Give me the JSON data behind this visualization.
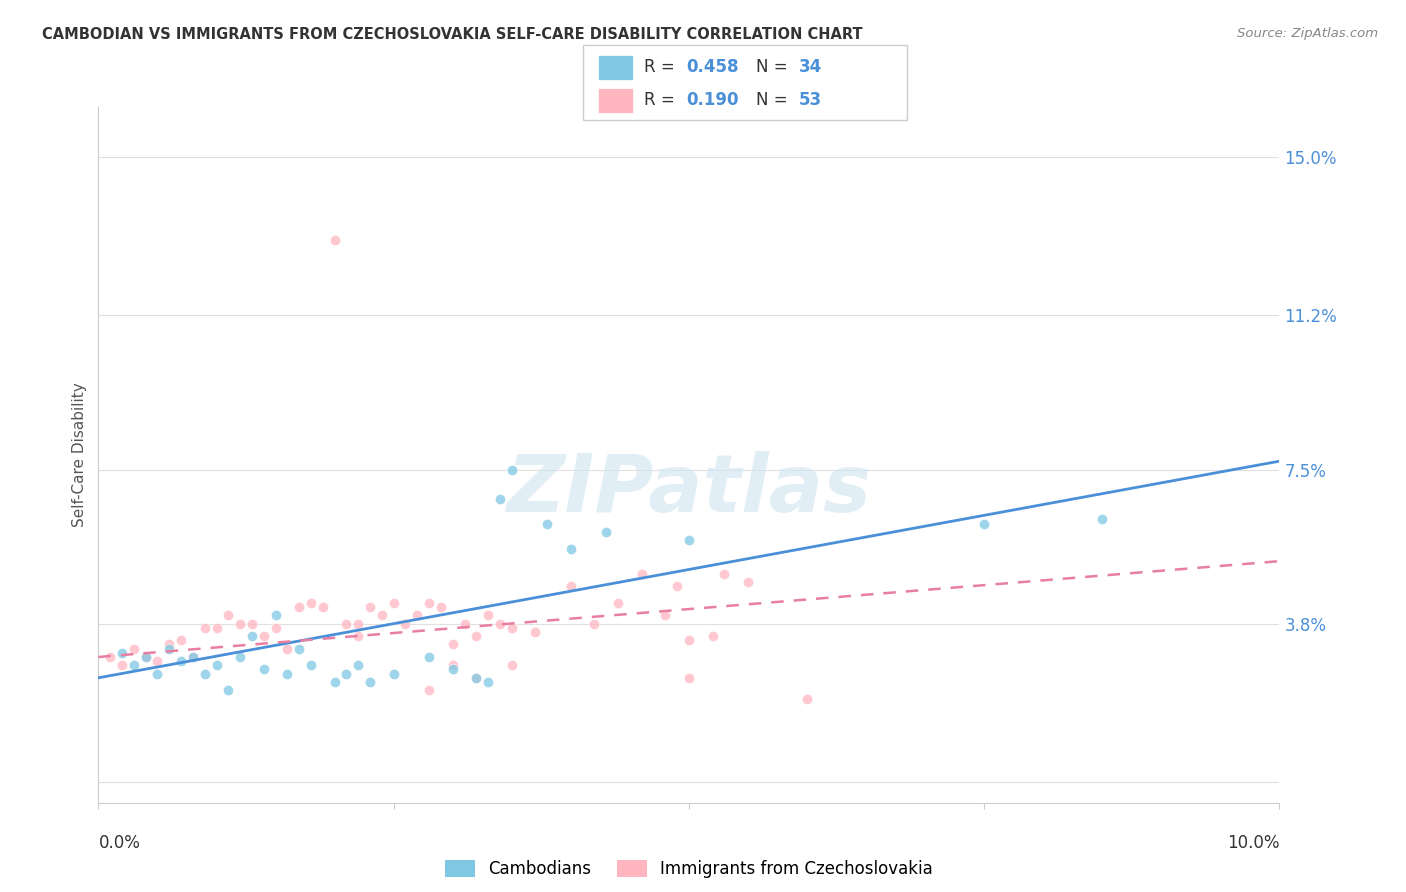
{
  "title": "CAMBODIAN VS IMMIGRANTS FROM CZECHOSLOVAKIA SELF-CARE DISABILITY CORRELATION CHART",
  "source": "Source: ZipAtlas.com",
  "ylabel": "Self-Care Disability",
  "yticks": [
    0.0,
    0.038,
    0.075,
    0.112,
    0.15
  ],
  "ytick_labels": [
    "",
    "3.8%",
    "7.5%",
    "11.2%",
    "15.0%"
  ],
  "xlim": [
    0.0,
    0.1
  ],
  "ylim": [
    -0.005,
    0.162
  ],
  "watermark": "ZIPatlas",
  "legend_r1": "0.458",
  "legend_n1": "34",
  "legend_r2": "0.190",
  "legend_n2": "53",
  "blue_color": "#7ec8e3",
  "pink_color": "#ffb6c1",
  "line_blue": "#4a90d9",
  "line_pink": "#e87ea1",
  "text_dark": "#333333",
  "text_blue": "#4a90d9",
  "title_color": "#333333",
  "axis_tick_color": "#4a90d9",
  "grid_color": "#e0e0e0",
  "blue_line_y0": 0.025,
  "blue_line_y1": 0.077,
  "pink_line_y0": 0.03,
  "pink_line_y1": 0.053,
  "cambodian_points": [
    [
      0.002,
      0.031
    ],
    [
      0.003,
      0.028
    ],
    [
      0.004,
      0.03
    ],
    [
      0.005,
      0.026
    ],
    [
      0.006,
      0.032
    ],
    [
      0.007,
      0.029
    ],
    [
      0.008,
      0.03
    ],
    [
      0.009,
      0.026
    ],
    [
      0.01,
      0.028
    ],
    [
      0.011,
      0.022
    ],
    [
      0.012,
      0.03
    ],
    [
      0.013,
      0.035
    ],
    [
      0.014,
      0.027
    ],
    [
      0.015,
      0.04
    ],
    [
      0.016,
      0.026
    ],
    [
      0.017,
      0.032
    ],
    [
      0.018,
      0.028
    ],
    [
      0.02,
      0.024
    ],
    [
      0.021,
      0.026
    ],
    [
      0.022,
      0.028
    ],
    [
      0.023,
      0.024
    ],
    [
      0.025,
      0.026
    ],
    [
      0.028,
      0.03
    ],
    [
      0.03,
      0.027
    ],
    [
      0.032,
      0.025
    ],
    [
      0.033,
      0.024
    ],
    [
      0.034,
      0.068
    ],
    [
      0.035,
      0.075
    ],
    [
      0.038,
      0.062
    ],
    [
      0.04,
      0.056
    ],
    [
      0.043,
      0.06
    ],
    [
      0.05,
      0.058
    ],
    [
      0.075,
      0.062
    ],
    [
      0.085,
      0.063
    ]
  ],
  "czech_points": [
    [
      0.001,
      0.03
    ],
    [
      0.002,
      0.028
    ],
    [
      0.003,
      0.032
    ],
    [
      0.004,
      0.03
    ],
    [
      0.005,
      0.029
    ],
    [
      0.006,
      0.033
    ],
    [
      0.007,
      0.034
    ],
    [
      0.008,
      0.03
    ],
    [
      0.009,
      0.037
    ],
    [
      0.01,
      0.037
    ],
    [
      0.011,
      0.04
    ],
    [
      0.012,
      0.038
    ],
    [
      0.013,
      0.038
    ],
    [
      0.014,
      0.035
    ],
    [
      0.015,
      0.037
    ],
    [
      0.016,
      0.032
    ],
    [
      0.017,
      0.042
    ],
    [
      0.018,
      0.043
    ],
    [
      0.019,
      0.042
    ],
    [
      0.02,
      0.13
    ],
    [
      0.021,
      0.038
    ],
    [
      0.022,
      0.035
    ],
    [
      0.023,
      0.042
    ],
    [
      0.024,
      0.04
    ],
    [
      0.025,
      0.043
    ],
    [
      0.026,
      0.038
    ],
    [
      0.027,
      0.04
    ],
    [
      0.028,
      0.043
    ],
    [
      0.029,
      0.042
    ],
    [
      0.03,
      0.033
    ],
    [
      0.031,
      0.038
    ],
    [
      0.032,
      0.035
    ],
    [
      0.033,
      0.04
    ],
    [
      0.034,
      0.038
    ],
    [
      0.035,
      0.037
    ],
    [
      0.037,
      0.036
    ],
    [
      0.04,
      0.047
    ],
    [
      0.042,
      0.038
    ],
    [
      0.044,
      0.043
    ],
    [
      0.046,
      0.05
    ],
    [
      0.048,
      0.04
    ],
    [
      0.049,
      0.047
    ],
    [
      0.05,
      0.034
    ],
    [
      0.052,
      0.035
    ],
    [
      0.053,
      0.05
    ],
    [
      0.055,
      0.048
    ],
    [
      0.022,
      0.038
    ],
    [
      0.028,
      0.022
    ],
    [
      0.03,
      0.028
    ],
    [
      0.032,
      0.025
    ],
    [
      0.035,
      0.028
    ],
    [
      0.05,
      0.025
    ],
    [
      0.06,
      0.02
    ]
  ]
}
